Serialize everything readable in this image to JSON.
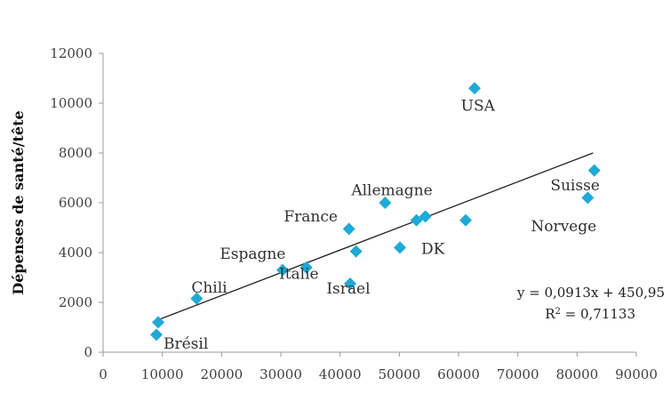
{
  "chart_data": {
    "type": "scatter",
    "ylabel": "Dépenses de santé/tête",
    "xlabel": "",
    "xlim": [
      0,
      90000
    ],
    "ylim": [
      0,
      12000
    ],
    "x_ticks": [
      "0",
      "10000",
      "20000",
      "30000",
      "40000",
      "50000",
      "60000",
      "70000",
      "80000",
      "90000"
    ],
    "y_ticks": [
      "0",
      "2000",
      "4000",
      "6000",
      "8000",
      "10000",
      "12000"
    ],
    "marker_color": "#1fa9d6",
    "points": [
      {
        "x": 9000,
        "y": 700
      },
      {
        "x": 9300,
        "y": 1200
      },
      {
        "x": 15800,
        "y": 2150
      },
      {
        "x": 30300,
        "y": 3300
      },
      {
        "x": 34300,
        "y": 3400
      },
      {
        "x": 41500,
        "y": 4950
      },
      {
        "x": 41700,
        "y": 2750
      },
      {
        "x": 42700,
        "y": 4050
      },
      {
        "x": 47600,
        "y": 6000
      },
      {
        "x": 50100,
        "y": 4200
      },
      {
        "x": 52900,
        "y": 5300
      },
      {
        "x": 54400,
        "y": 5450
      },
      {
        "x": 61200,
        "y": 5300
      },
      {
        "x": 62700,
        "y": 10600
      },
      {
        "x": 81800,
        "y": 6200
      },
      {
        "x": 82900,
        "y": 7300
      }
    ],
    "point_labels": [
      {
        "text": "USA",
        "x": 60400,
        "y": 9700
      },
      {
        "text": "Allemagne",
        "x": 41900,
        "y": 6300
      },
      {
        "text": "Suisse",
        "x": 75500,
        "y": 6500
      },
      {
        "text": "France",
        "x": 30500,
        "y": 5250
      },
      {
        "text": "Norvege",
        "x": 72200,
        "y": 4850
      },
      {
        "text": "DK",
        "x": 53700,
        "y": 3950
      },
      {
        "text": "Espagne",
        "x": 19700,
        "y": 3750
      },
      {
        "text": "Italie",
        "x": 29700,
        "y": 2950
      },
      {
        "text": "Israel",
        "x": 37700,
        "y": 2350
      },
      {
        "text": "Chili",
        "x": 14900,
        "y": 2400
      },
      {
        "text": "Brésil",
        "x": 10200,
        "y": 140
      }
    ],
    "trendline": {
      "slope": 0.0913,
      "intercept": 450.95,
      "x_start": 9000,
      "x_end": 82700,
      "color": "#222222"
    },
    "equation": "y = 0,0913x + 450,95",
    "r2_prefix": "R",
    "r2_exponent": "2",
    "r2_rest": " = 0,71133",
    "grid": false
  }
}
